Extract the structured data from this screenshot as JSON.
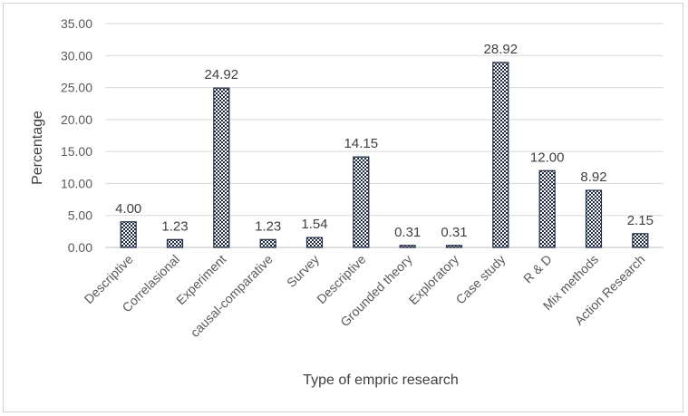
{
  "chart_data": {
    "type": "bar",
    "title": "",
    "xlabel": "Type of empric research",
    "ylabel": "Percentage",
    "ylim": [
      0,
      35
    ],
    "ytick_step": 5,
    "ytick_labels": [
      "0.00",
      "5.00",
      "10.00",
      "15.00",
      "20.00",
      "25.00",
      "30.00",
      "35.00"
    ],
    "grid": true,
    "legend": "none",
    "bar_fill": "checkered",
    "bar_color": "#1f2a44",
    "categories": [
      "Descriptive",
      "Correlasional",
      "Experiment",
      "causal-comparative",
      "Survey",
      "Descriptive",
      "Grounded theory",
      "Exploratory",
      "Case study",
      "R & D",
      "Mix methods",
      "Action Research"
    ],
    "values": [
      4.0,
      1.23,
      24.92,
      1.23,
      1.54,
      14.15,
      0.31,
      0.31,
      28.92,
      12.0,
      8.92,
      2.15
    ],
    "data_labels": [
      "4.00",
      "1.23",
      "24.92",
      "1.23",
      "1.54",
      "14.15",
      "0.31",
      "0.31",
      "28.92",
      "12.00",
      "8.92",
      "2.15"
    ]
  }
}
